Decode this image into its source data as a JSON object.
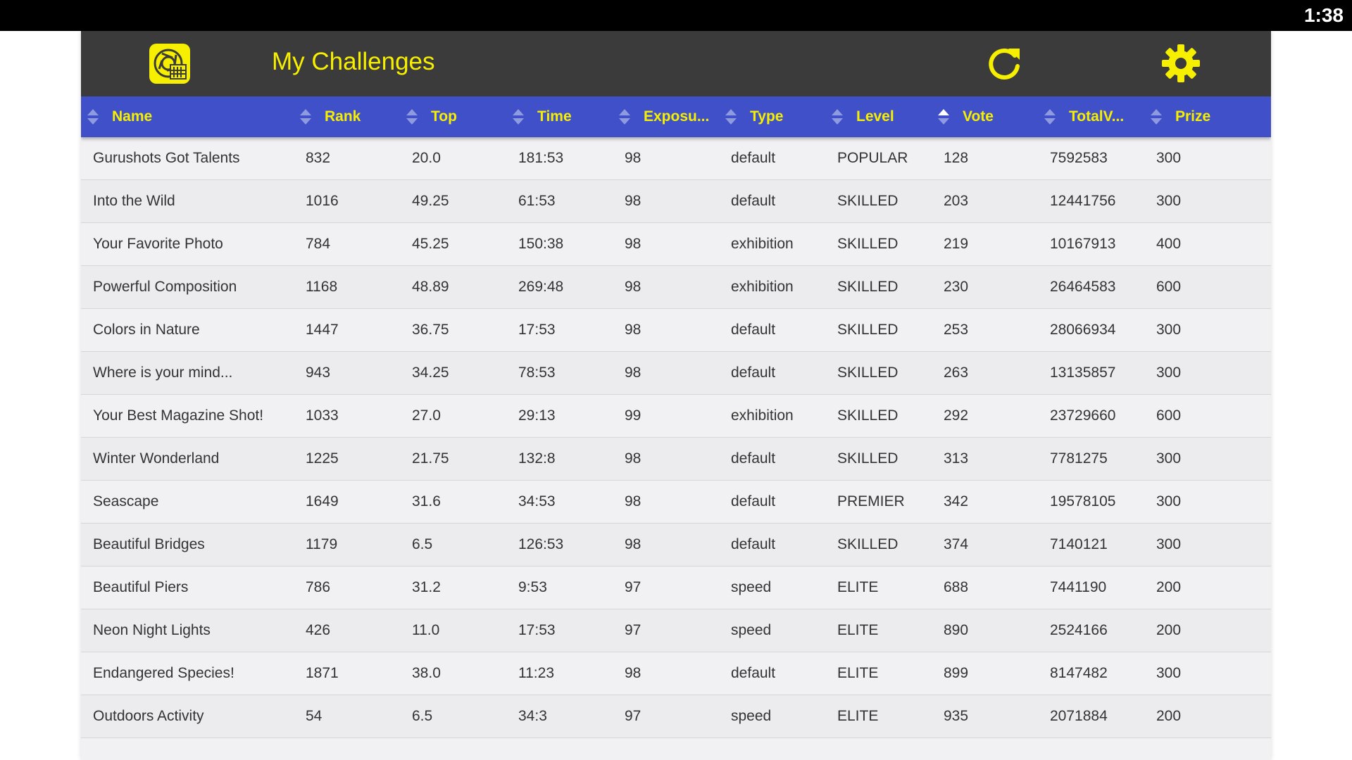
{
  "status_bar": {
    "time": "1:38"
  },
  "app": {
    "title": "My Challenges",
    "logo_icon": "camera-aperture-logo-icon",
    "refresh_icon": "refresh-icon",
    "settings_icon": "gear-icon"
  },
  "colors": {
    "accent": "#f7ef00",
    "appbar": "#3b3b3b",
    "header": "#4050c8",
    "row": "#f1f1f3"
  },
  "table": {
    "columns": [
      "Name",
      "Rank",
      "Top",
      "Time",
      "Exposu...",
      "Type",
      "Level",
      "Vote",
      "TotalV...",
      "Prize"
    ],
    "sorted_column": "Vote",
    "rows": [
      [
        "Gurushots Got Talents",
        "832",
        "20.0",
        "181:53",
        "98",
        "default",
        "POPULAR",
        "128",
        "7592583",
        "300"
      ],
      [
        "Into the Wild",
        "1016",
        "49.25",
        "61:53",
        "98",
        "default",
        "SKILLED",
        "203",
        "12441756",
        "300"
      ],
      [
        "Your Favorite Photo",
        "784",
        "45.25",
        "150:38",
        "98",
        "exhibition",
        "SKILLED",
        "219",
        "10167913",
        "400"
      ],
      [
        "Powerful Composition",
        "1168",
        "48.89",
        "269:48",
        "98",
        "exhibition",
        "SKILLED",
        "230",
        "26464583",
        "600"
      ],
      [
        "Colors in Nature",
        "1447",
        "36.75",
        "17:53",
        "98",
        "default",
        "SKILLED",
        "253",
        "28066934",
        "300"
      ],
      [
        "Where is your mind...",
        "943",
        "34.25",
        "78:53",
        "98",
        "default",
        "SKILLED",
        "263",
        "13135857",
        "300"
      ],
      [
        "Your Best Magazine Shot!",
        "1033",
        "27.0",
        "29:13",
        "99",
        "exhibition",
        "SKILLED",
        "292",
        "23729660",
        "600"
      ],
      [
        "Winter Wonderland",
        "1225",
        "21.75",
        "132:8",
        "98",
        "default",
        "SKILLED",
        "313",
        "7781275",
        "300"
      ],
      [
        "Seascape",
        "1649",
        "31.6",
        "34:53",
        "98",
        "default",
        "PREMIER",
        "342",
        "19578105",
        "300"
      ],
      [
        "Beautiful Bridges",
        "1179",
        "6.5",
        "126:53",
        "98",
        "default",
        "SKILLED",
        "374",
        "7140121",
        "300"
      ],
      [
        "Beautiful Piers",
        "786",
        "31.2",
        "9:53",
        "97",
        "speed",
        "ELITE",
        "688",
        "7441190",
        "200"
      ],
      [
        "Neon Night Lights",
        "426",
        "11.0",
        "17:53",
        "97",
        "speed",
        "ELITE",
        "890",
        "2524166",
        "200"
      ],
      [
        "Endangered Species!",
        "1871",
        "38.0",
        "11:23",
        "98",
        "default",
        "ELITE",
        "899",
        "8147482",
        "300"
      ],
      [
        "Outdoors Activity",
        "54",
        "6.5",
        "34:3",
        "97",
        "speed",
        "ELITE",
        "935",
        "2071884",
        "200"
      ]
    ]
  }
}
